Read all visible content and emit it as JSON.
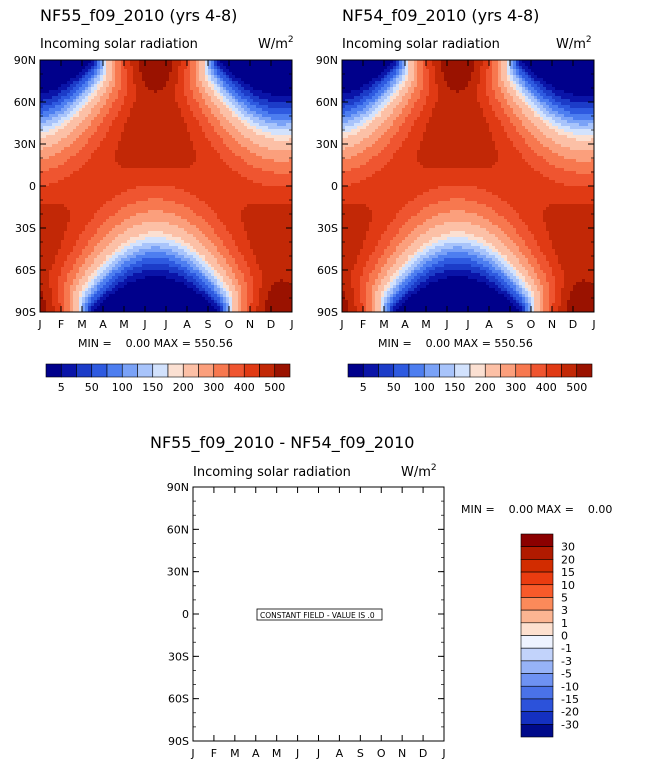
{
  "chart_data": [
    {
      "type": "heatmap",
      "title": "NF55_f09_2010 (yrs 4-8)",
      "subtitle": "Incoming solar radiation",
      "units": "W/m",
      "units_sup": "2",
      "x_ticks": [
        "J",
        "F",
        "M",
        "A",
        "M",
        "J",
        "J",
        "A",
        "S",
        "O",
        "N",
        "D",
        "J"
      ],
      "y_ticks": [
        "90N",
        "60N",
        "30N",
        "0",
        "30S",
        "60S",
        "90S"
      ],
      "ylim": [
        -90,
        90
      ],
      "stats_label": "MIN =    0.00 MAX = 550.56",
      "min": 0.0,
      "max": 550.56,
      "colorbar": [
        "5",
        "50",
        "100",
        "150",
        "200",
        "300",
        "400",
        "500"
      ]
    },
    {
      "type": "heatmap",
      "title": "NF54_f09_2010 (yrs 4-8)",
      "subtitle": "Incoming solar radiation",
      "units": "W/m",
      "units_sup": "2",
      "x_ticks": [
        "J",
        "F",
        "M",
        "A",
        "M",
        "J",
        "J",
        "A",
        "S",
        "O",
        "N",
        "D",
        "J"
      ],
      "y_ticks": [
        "90N",
        "60N",
        "30N",
        "0",
        "30S",
        "60S",
        "90S"
      ],
      "ylim": [
        -90,
        90
      ],
      "stats_label": "MIN =    0.00 MAX = 550.56",
      "min": 0.0,
      "max": 550.56,
      "colorbar": [
        "5",
        "50",
        "100",
        "150",
        "200",
        "300",
        "400",
        "500"
      ]
    },
    {
      "type": "heatmap",
      "title": "NF55_f09_2010 - NF54_f09_2010",
      "subtitle": "Incoming solar radiation",
      "units": "W/m",
      "units_sup": "2",
      "x_ticks": [
        "J",
        "F",
        "M",
        "A",
        "M",
        "J",
        "J",
        "A",
        "S",
        "O",
        "N",
        "D",
        "J"
      ],
      "y_ticks": [
        "90N",
        "60N",
        "30N",
        "0",
        "30S",
        "60S",
        "90S"
      ],
      "ylim": [
        -90,
        90
      ],
      "stats_label": "MIN =    0.00 MAX =    0.00",
      "min": 0.0,
      "max": 0.0,
      "annotation": "CONSTANT FIELD - VALUE IS .0",
      "colorbar": [
        "30",
        "20",
        "15",
        "10",
        "5",
        "3",
        "1",
        "0",
        "-1",
        "-3",
        "-5",
        "-10",
        "-15",
        "-20",
        "-30"
      ]
    }
  ],
  "colors": {
    "main_palette": [
      "#00008b",
      "#0a14a8",
      "#1c3cc8",
      "#2e5ae0",
      "#4d7ef0",
      "#7aa2f7",
      "#a8c4fb",
      "#d2e2fd",
      "#fbe0d2",
      "#fcc0a6",
      "#fb9f7c",
      "#f7784f",
      "#ef5530",
      "#e03a14",
      "#c22806",
      "#9a1200"
    ],
    "diff_palette": [
      "#8b0000",
      "#b01a00",
      "#d22c00",
      "#ea3c10",
      "#f85a2a",
      "#fb8a5a",
      "#fcb592",
      "#fde0cf",
      "#eef3ff",
      "#c2d3fb",
      "#97b3f7",
      "#6e92f2",
      "#4a72e8",
      "#2c52da",
      "#1430c0",
      "#000a8a"
    ]
  }
}
